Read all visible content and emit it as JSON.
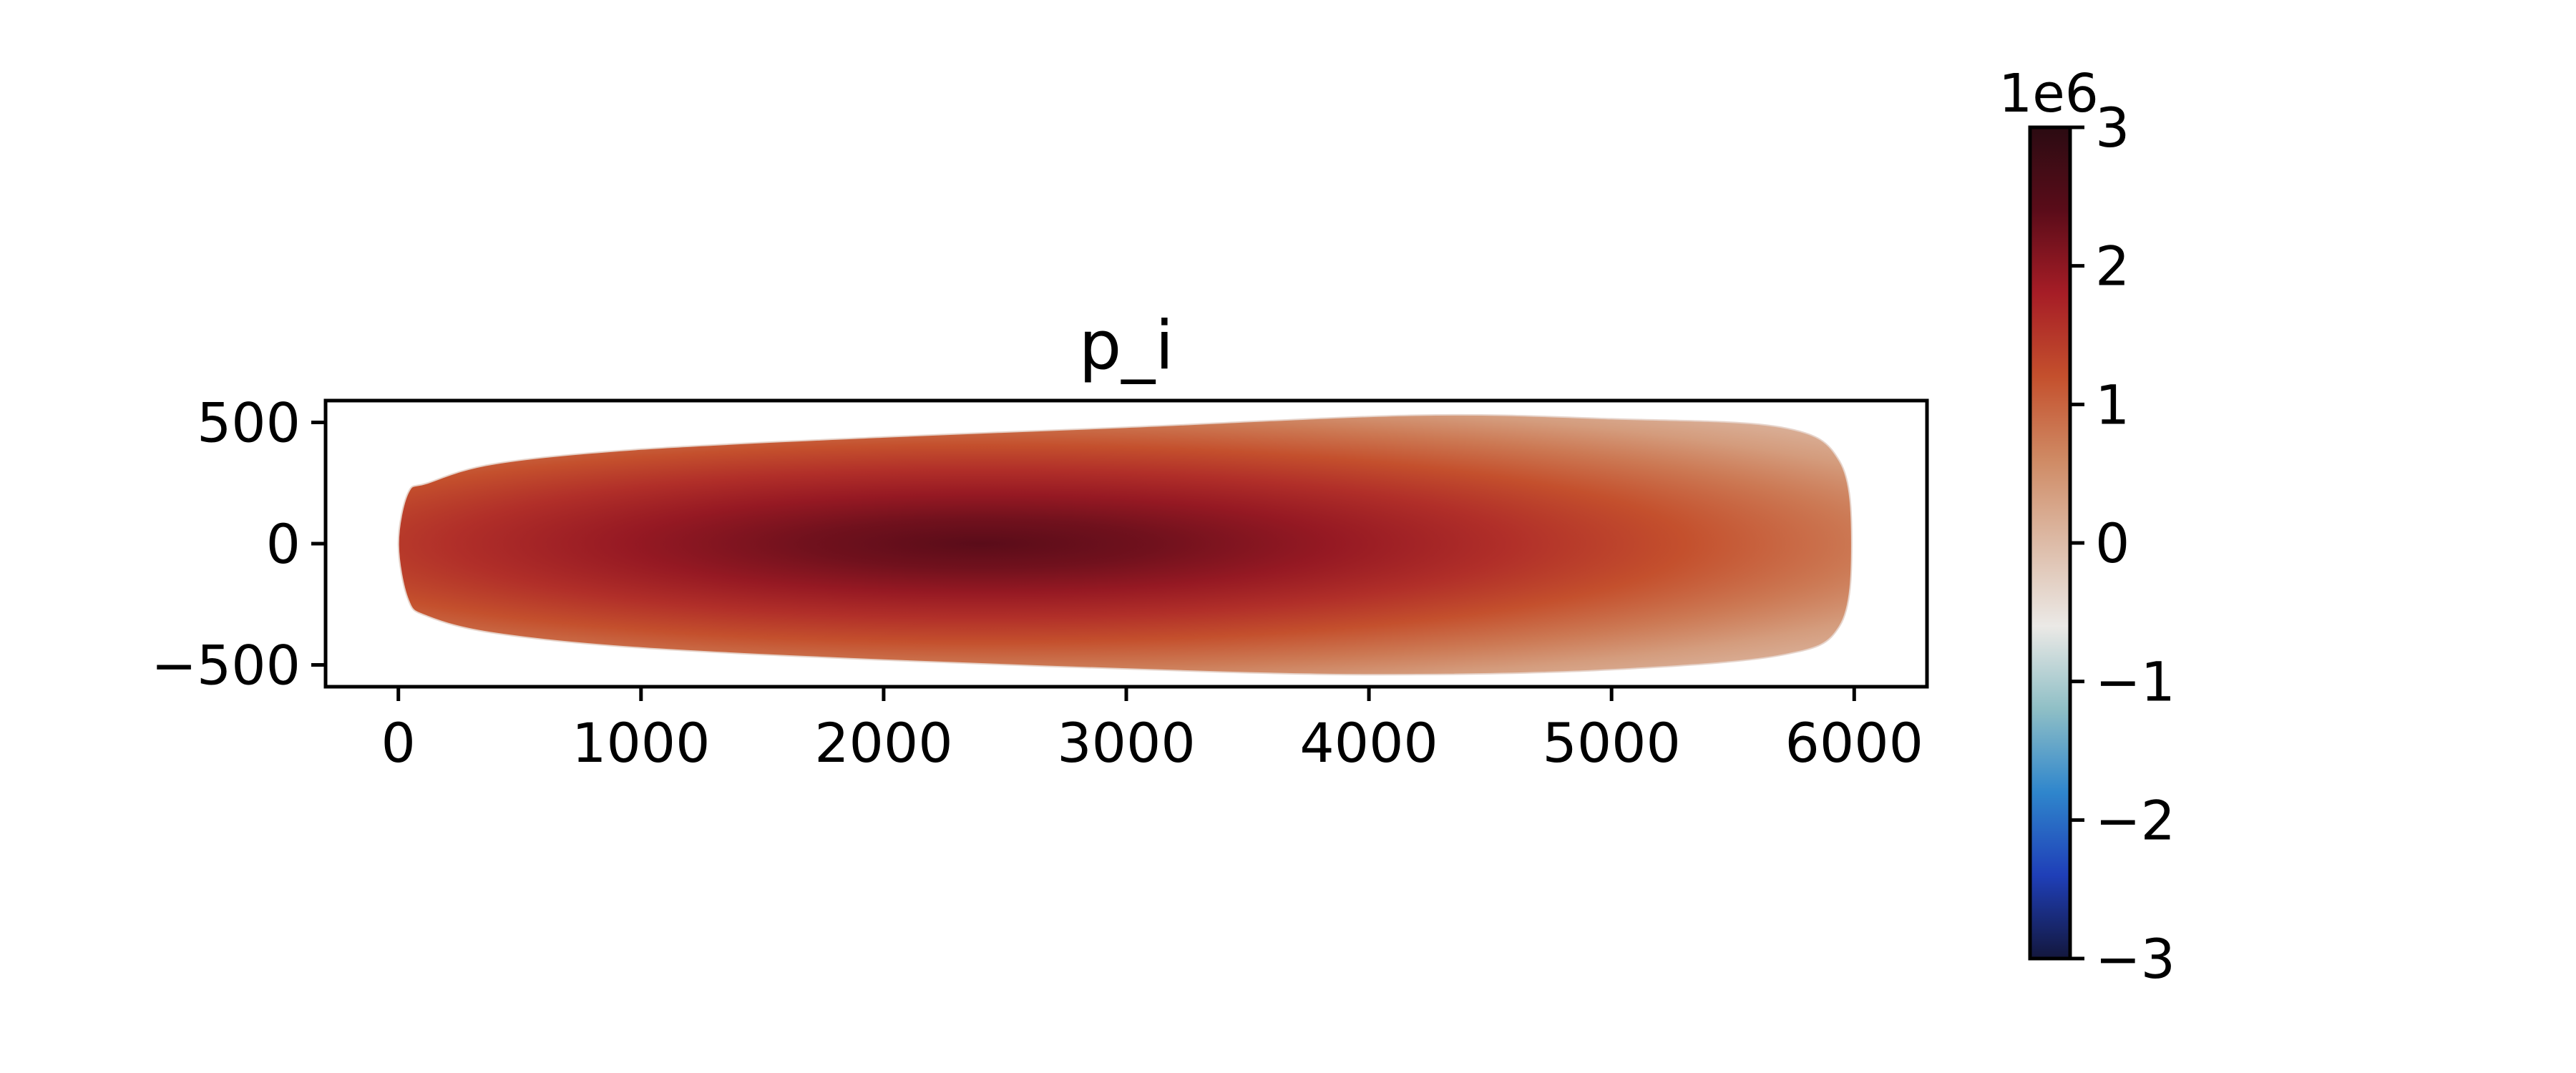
{
  "chart_data": {
    "type": "heatmap",
    "title": "p_i",
    "xlabel": "",
    "ylabel": "",
    "xlim": [
      -300,
      6300
    ],
    "ylim": [
      -590,
      590
    ],
    "x_ticks": [
      0,
      1000,
      2000,
      3000,
      4000,
      5000,
      6000
    ],
    "y_ticks": [
      -500,
      0,
      500
    ],
    "x_tick_labels": [
      "0",
      "1000",
      "2000",
      "3000",
      "4000",
      "5000",
      "6000"
    ],
    "y_tick_labels": [
      "−500",
      "0",
      "500"
    ],
    "grid": false,
    "outline": [
      [
        0,
        0
      ],
      [
        40,
        210
      ],
      [
        120,
        250
      ],
      [
        400,
        330
      ],
      [
        1000,
        390
      ],
      [
        2000,
        440
      ],
      [
        3000,
        480
      ],
      [
        4200,
        530
      ],
      [
        5000,
        515
      ],
      [
        5700,
        480
      ],
      [
        5940,
        340
      ],
      [
        5990,
        0
      ],
      [
        5940,
        -340
      ],
      [
        5700,
        -460
      ],
      [
        5000,
        -520
      ],
      [
        4200,
        -540
      ],
      [
        3400,
        -530
      ],
      [
        2000,
        -480
      ],
      [
        1000,
        -430
      ],
      [
        400,
        -370
      ],
      [
        120,
        -300
      ],
      [
        40,
        -230
      ]
    ],
    "peak": {
      "x": 2400,
      "y": 0,
      "value": 2400000
    },
    "colorbar": {
      "range": [
        -3000000,
        3000000
      ],
      "ticks": [
        -3,
        -2,
        -1,
        0,
        1,
        2,
        3
      ],
      "tick_labels": [
        "−3",
        "−2",
        "−1",
        "0",
        "1",
        "2",
        "3"
      ],
      "multiplier": "1e6",
      "colormap": "blue-white-red (diverging)",
      "colors": [
        "#13173d",
        "#1f3fb8",
        "#2f86cc",
        "#8fbfc6",
        "#ebe9e6",
        "#ddbba7",
        "#cf8a64",
        "#c4502d",
        "#a61d26",
        "#5a0c19",
        "#2b0b12"
      ]
    }
  }
}
